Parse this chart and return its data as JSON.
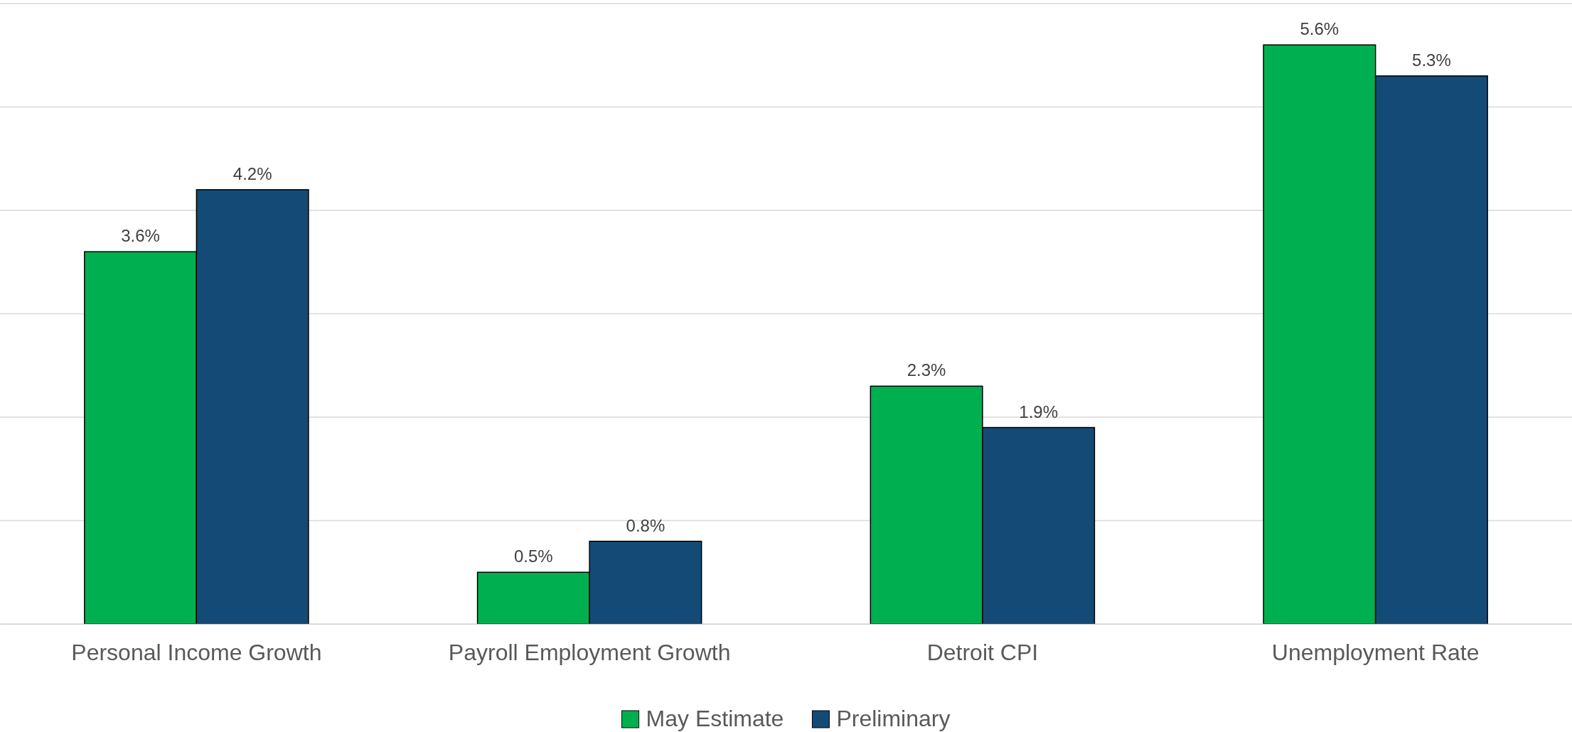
{
  "chart_data": {
    "type": "bar",
    "categories": [
      "Personal Income Growth",
      "Payroll Employment Growth",
      "Detroit CPI",
      "Unemployment Rate"
    ],
    "series": [
      {
        "name": "May Estimate",
        "color": "#00b050",
        "values": [
          3.6,
          0.5,
          2.3,
          5.6
        ],
        "value_labels": [
          "3.6%",
          "0.5%",
          "2.3%",
          "5.6%"
        ]
      },
      {
        "name": "Preliminary",
        "color": "#134b76",
        "values": [
          4.2,
          0.8,
          1.9,
          5.3
        ],
        "value_labels": [
          "4.2%",
          "0.8%",
          "1.9%",
          "5.3%"
        ]
      }
    ],
    "ylim": [
      0,
      6
    ],
    "yticks": [
      {
        "value": 0,
        "label": null
      },
      {
        "value": 1,
        "label": null
      },
      {
        "value": 2,
        "label": null
      },
      {
        "value": 3,
        "label": null
      },
      {
        "value": 4,
        "label": null
      },
      {
        "value": 5,
        "label": null
      },
      {
        "value": 6,
        "label": null
      }
    ],
    "tick_labels": "x",
    "grid": "y",
    "legend": "bottom"
  }
}
